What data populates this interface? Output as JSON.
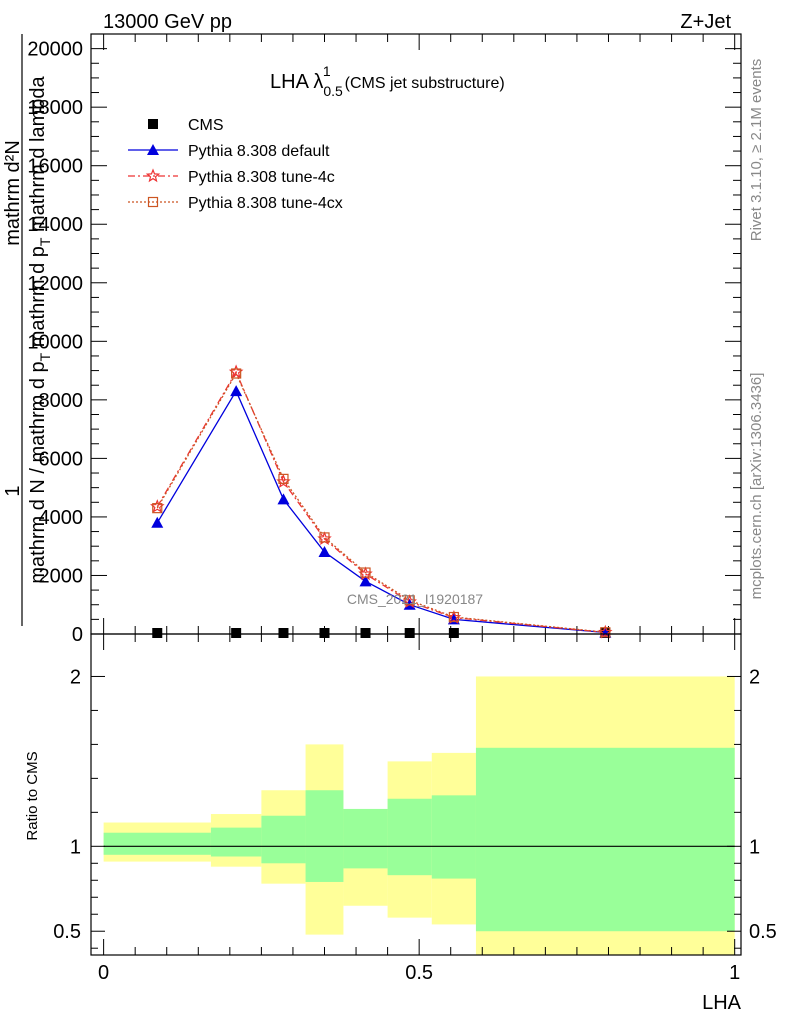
{
  "header": {
    "left": "13000 GeV pp",
    "right": "Z+Jet"
  },
  "side": {
    "rivet": "Rivet 3.1.10, ≥ 2.1M events",
    "mcplots": "mcplots.cern.ch [arXiv:1306.3436]"
  },
  "chart_data": [
    {
      "type": "line",
      "title": "LHA λ",
      "title_sup": "1",
      "title_sub": "0.5",
      "title_suffix": "(CMS jet substructure)",
      "ylabel_top": "1",
      "ylabel_line1": "mathrm d²N",
      "ylabel_line2": "mathrm d N / mathrm d p",
      "ylabel_line2_sub": "T",
      "ylabel_line2b": " mathrm d p",
      "ylabel_line2b_sub": "T",
      "ylabel_line2c": " mathrm d lambda",
      "watermark": "CMS_2021_I1920187",
      "ylim": [
        0,
        20500
      ],
      "y_ticks": [
        0,
        2000,
        4000,
        6000,
        8000,
        10000,
        12000,
        14000,
        16000,
        18000,
        20000
      ],
      "y_tick_labels": [
        "0",
        "2000",
        "4000",
        "6000",
        "8000",
        "10000",
        "12000",
        "14000",
        "16000",
        "18000",
        "20000"
      ],
      "xlim": [
        -0.02,
        1.01
      ],
      "legend_position": "top-left",
      "series": [
        {
          "name": "CMS",
          "color": "#000000",
          "marker": "square",
          "x": [
            0.085,
            0.21,
            0.285,
            0.35,
            0.415,
            0.485,
            0.555,
            0.795
          ],
          "y": [
            0,
            0,
            0,
            0,
            0,
            0,
            0,
            0
          ]
        },
        {
          "name": "Pythia 8.308 default",
          "color": "#0000dd",
          "marker": "triangle",
          "dash": "solid",
          "x": [
            0.085,
            0.21,
            0.285,
            0.35,
            0.415,
            0.485,
            0.555,
            0.795
          ],
          "y": [
            3800,
            8300,
            4600,
            2800,
            1800,
            1000,
            500,
            50
          ]
        },
        {
          "name": "Pythia 8.308 tune-4c",
          "color": "#ee3333",
          "marker": "star",
          "dash": "dashdot",
          "x": [
            0.085,
            0.21,
            0.285,
            0.35,
            0.415,
            0.485,
            0.555,
            0.795
          ],
          "y": [
            4350,
            8950,
            5200,
            3250,
            2050,
            1100,
            560,
            55
          ]
        },
        {
          "name": "Pythia 8.308 tune-4cx",
          "color": "#cc5522",
          "marker": "opensquare",
          "dash": "dotted",
          "x": [
            0.085,
            0.21,
            0.285,
            0.35,
            0.415,
            0.485,
            0.555,
            0.795
          ],
          "y": [
            4300,
            8900,
            5300,
            3300,
            2100,
            1150,
            580,
            60
          ]
        }
      ]
    },
    {
      "type": "area",
      "ylabel": "Ratio to CMS",
      "xlabel": "LHA",
      "ylim": [
        0.36,
        2.25
      ],
      "y_ticks": [
        0.5,
        1,
        2
      ],
      "y_tick_labels": [
        "0.5",
        "1",
        "2"
      ],
      "x_ticks": [
        0,
        0.5,
        1
      ],
      "x_tick_labels": [
        "0",
        "0.5",
        "1"
      ],
      "xlim": [
        -0.02,
        1.01
      ],
      "bands": [
        {
          "x0": 0.0,
          "x1": 0.17,
          "yellow": [
            0.91,
            1.14
          ],
          "green": [
            0.95,
            1.08
          ]
        },
        {
          "x0": 0.17,
          "x1": 0.25,
          "yellow": [
            0.88,
            1.19
          ],
          "green": [
            0.94,
            1.11
          ]
        },
        {
          "x0": 0.25,
          "x1": 0.32,
          "yellow": [
            0.78,
            1.33
          ],
          "green": [
            0.9,
            1.18
          ]
        },
        {
          "x0": 0.32,
          "x1": 0.38,
          "yellow": [
            0.48,
            1.6
          ],
          "green": [
            0.79,
            1.33
          ]
        },
        {
          "x0": 0.38,
          "x1": 0.45,
          "yellow": [
            0.65,
            1.21
          ],
          "green": [
            0.87,
            1.22
          ]
        },
        {
          "x0": 0.45,
          "x1": 0.52,
          "yellow": [
            0.58,
            1.5
          ],
          "green": [
            0.83,
            1.28
          ]
        },
        {
          "x0": 0.52,
          "x1": 0.59,
          "yellow": [
            0.54,
            1.55
          ],
          "green": [
            0.81,
            1.3
          ]
        },
        {
          "x0": 0.59,
          "x1": 1.0,
          "yellow": [
            0.36,
            2.0
          ],
          "green": [
            0.5,
            1.58
          ]
        }
      ],
      "colors": {
        "yellow": "#ffff99",
        "green": "#99ff99"
      }
    }
  ]
}
